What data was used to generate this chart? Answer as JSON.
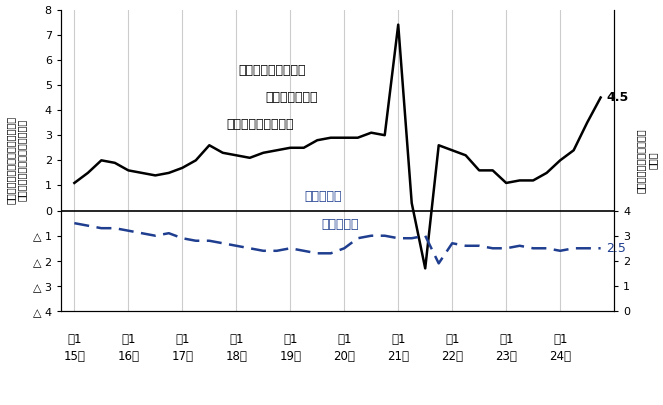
{
  "wage_data": [
    1.1,
    1.5,
    2.0,
    1.9,
    1.6,
    1.5,
    1.4,
    1.5,
    1.7,
    2.0,
    2.6,
    2.3,
    2.2,
    2.1,
    2.3,
    2.4,
    2.5,
    2.5,
    2.8,
    2.9,
    2.9,
    2.9,
    3.1,
    3.0,
    7.4,
    0.3,
    -2.3,
    2.6,
    2.4,
    2.2,
    1.6,
    1.6,
    1.1,
    1.2,
    1.2,
    1.5,
    2.0,
    2.4,
    3.5,
    4.5
  ],
  "unemp_data": [
    3.5,
    3.4,
    3.3,
    3.3,
    3.2,
    3.1,
    3.0,
    3.1,
    2.9,
    2.8,
    2.8,
    2.7,
    2.6,
    2.5,
    2.4,
    2.4,
    2.5,
    2.4,
    2.3,
    2.3,
    2.5,
    2.9,
    3.0,
    3.0,
    2.9,
    2.9,
    3.0,
    1.9,
    2.7,
    2.6,
    2.6,
    2.5,
    2.5,
    2.6,
    2.5,
    2.5,
    2.4,
    2.5,
    2.5,
    2.5
  ],
  "n_quarters": 40,
  "n_years": 10,
  "ylim_left": [
    -4,
    8
  ],
  "right_ylim": [
    0,
    12
  ],
  "right_tick_vals": [
    0,
    1,
    2,
    3,
    4
  ],
  "right_tick_labels": [
    "0",
    "1",
    "2",
    "3",
    "4"
  ],
  "left_tick_vals": [
    -4,
    -3,
    -2,
    -1,
    0,
    1,
    2,
    3,
    4,
    5,
    6,
    7,
    8
  ],
  "left_tick_labels": [
    "△ 4",
    "△ 3",
    "△ 2",
    "△ 1",
    "0",
    "1",
    "2",
    "3",
    "4",
    "5",
    "6",
    "7",
    "8"
  ],
  "x_top_labels": [
    "第1",
    "第1",
    "第1",
    "第1",
    "第1",
    "第1",
    "第1",
    "第1",
    "第1",
    "第1"
  ],
  "x_bot_labels": [
    "15年",
    "16年",
    "17年",
    "18年",
    "19年",
    "20年",
    "21年",
    "22年",
    "23年",
    "24年"
  ],
  "wage_color": "#000000",
  "unemp_color": "#1F3E8F",
  "grid_color": "#cccccc",
  "zero_line_color": "#000000",
  "bg_color": "#ffffff",
  "wage_annotation": "4.5",
  "unemp_annotation": "2.5",
  "legend_wage_line1": "パートタイム労働者",
  "legend_wage_line2": "時間当たり賃金",
  "legend_wage_line3": "（前年同期増減率）",
  "legend_unemp_line1": "完全失業率",
  "legend_unemp_line2": "（右目盛）",
  "ylabel_left_lines": [
    "パートタイム分労働者時間当たり",
    "賃金（前年同期増減率）（％）"
  ],
  "ylabel_right_lines": [
    "完全失業率・季節調整値",
    "（％）"
  ]
}
